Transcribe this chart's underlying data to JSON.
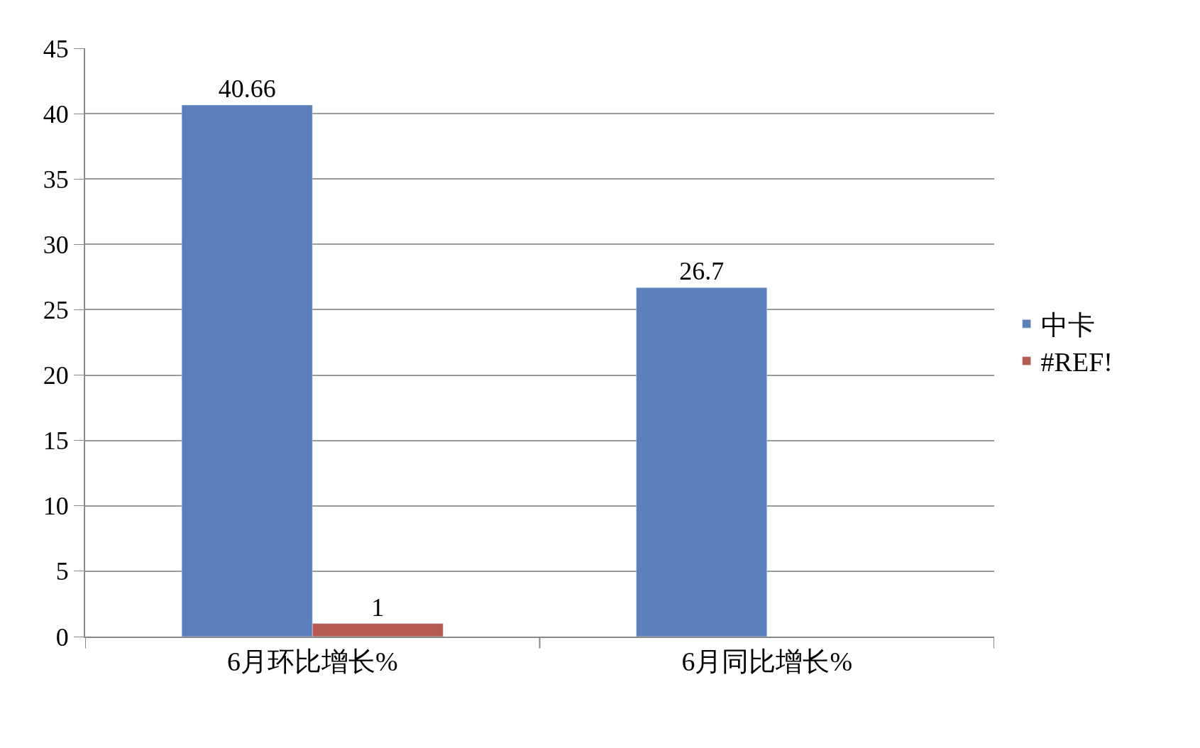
{
  "chart_data": {
    "type": "bar",
    "categories": [
      "6月环比增长%",
      "6月同比增长%"
    ],
    "series": [
      {
        "name": "中卡",
        "color": "#5b7fbb",
        "values": [
          40.66,
          26.7
        ]
      },
      {
        "name": "#REF!",
        "color": "#b65a52",
        "values": [
          1,
          null
        ]
      }
    ],
    "ylim": [
      0,
      45
    ],
    "yticks": [
      0,
      5,
      10,
      15,
      20,
      25,
      30,
      35,
      40,
      45
    ],
    "grid": "y",
    "legend": "right",
    "data_labels": true
  }
}
